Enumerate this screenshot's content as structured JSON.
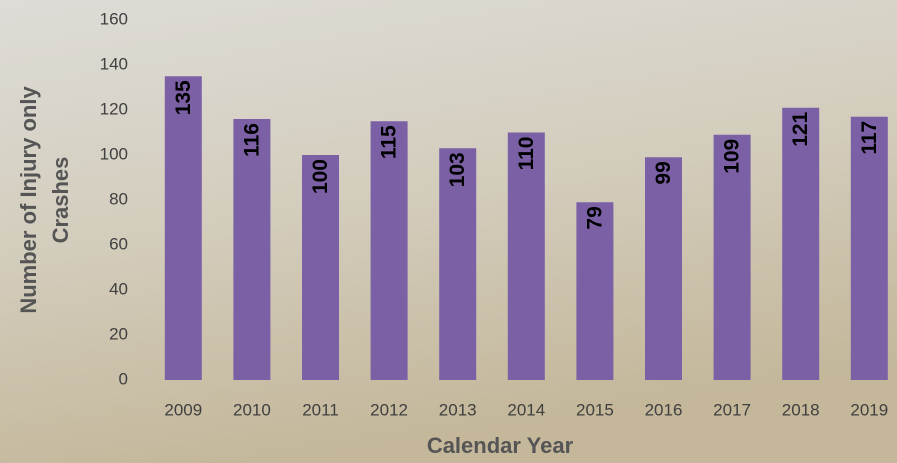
{
  "chart_data": {
    "type": "bar",
    "x_label": "Calendar Year",
    "y_label": "Number of Injury only Crashes",
    "categories": [
      "2009",
      "2010",
      "2011",
      "2012",
      "2013",
      "2014",
      "2015",
      "2016",
      "2017",
      "2018",
      "2019"
    ],
    "values": [
      135,
      116,
      100,
      115,
      103,
      110,
      79,
      99,
      109,
      121,
      117
    ],
    "color": "#7b60a6",
    "ylim": [
      0,
      160
    ],
    "yticks": [
      0,
      20,
      40,
      60,
      80,
      100,
      120,
      140,
      160
    ],
    "grid": false
  }
}
